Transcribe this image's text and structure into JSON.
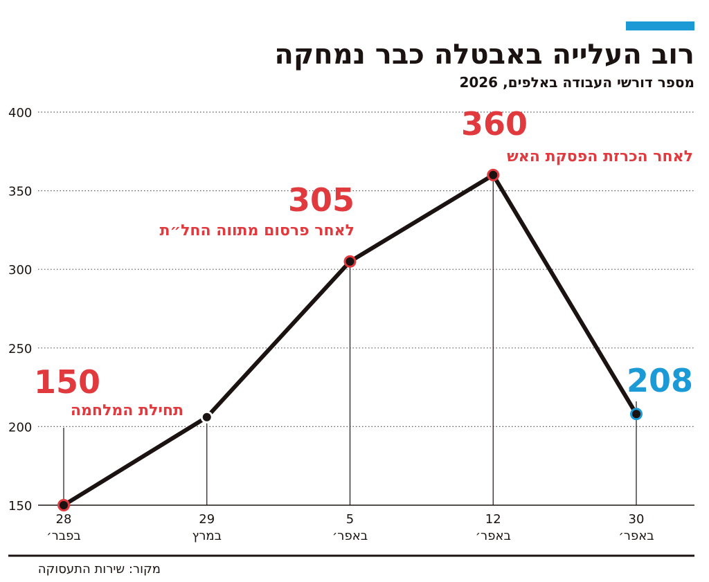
{
  "chart_data": {
    "type": "line",
    "title": "רוב העלייה באבטלה כבר נמחקה",
    "subtitle": "מספר דורשי העבודה באלפים, 2026",
    "categories": [
      [
        "28",
        "בפבר׳"
      ],
      [
        "29",
        "במרץ"
      ],
      [
        "5",
        "באפר׳"
      ],
      [
        "12",
        "באפר׳"
      ],
      [
        "30",
        "באפר׳"
      ]
    ],
    "values": [
      150,
      206,
      305,
      360,
      208
    ],
    "value_labels": [
      "150",
      null,
      "305",
      "360",
      "208"
    ],
    "point_notes": [
      "תחילת המלחמה",
      null,
      "לאחר פרסום מתווה החל״ת",
      "לאחר הכרזת הפסקת האש",
      null
    ],
    "point_colors": [
      "#e0393e",
      "#ffffff",
      "#e0393e",
      "#e0393e",
      "#1b9ad6"
    ],
    "color": "#1a1311",
    "ylim": [
      150,
      400
    ],
    "yticks": [
      150,
      200,
      250,
      300,
      350,
      400
    ],
    "grid": true,
    "source": "מקור: שירות התעסוקה"
  }
}
